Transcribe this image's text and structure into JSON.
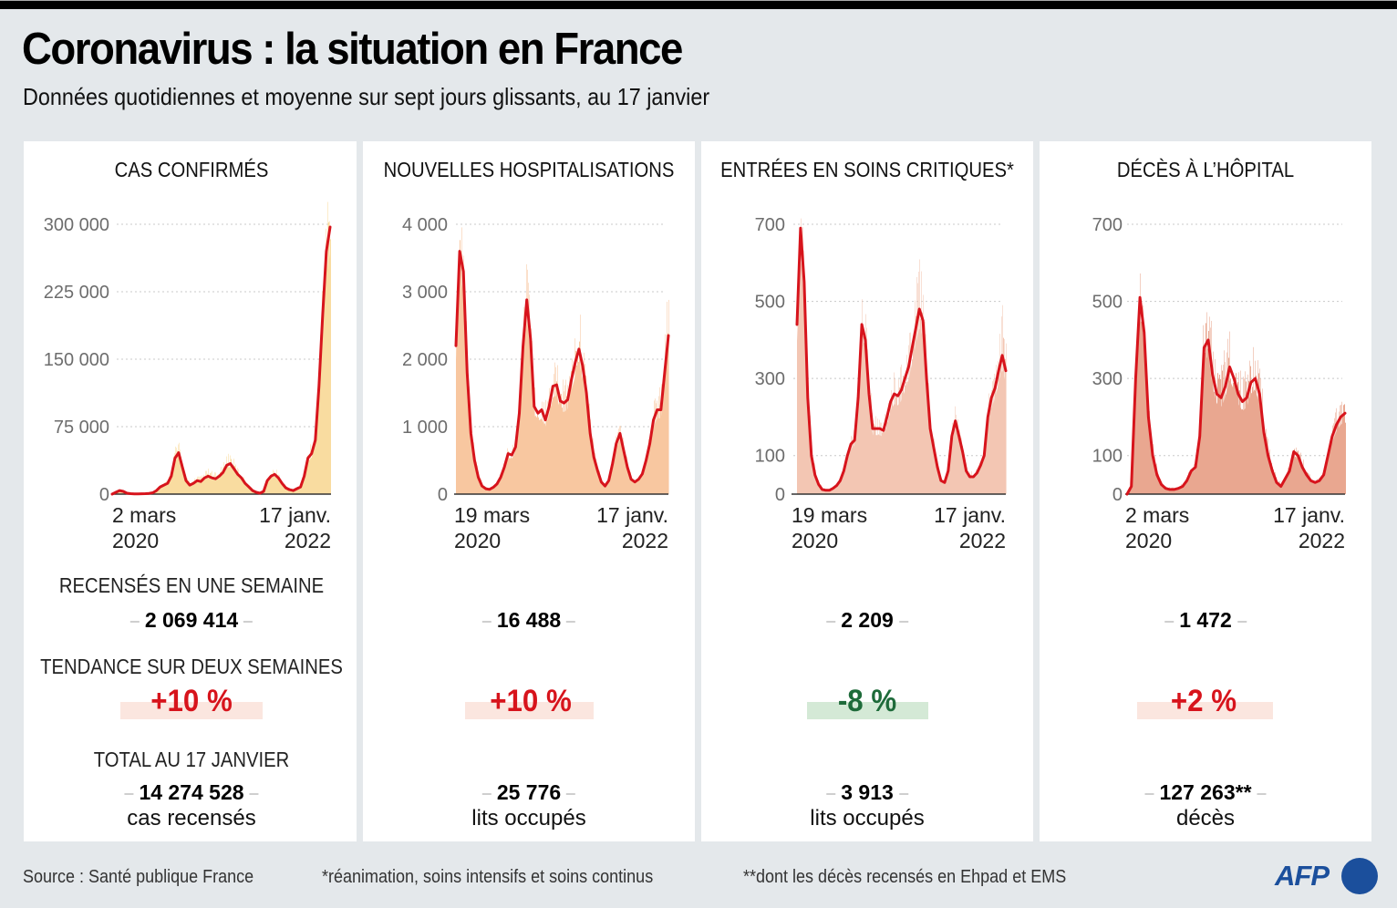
{
  "header": {
    "title": "Coronavirus : la situation en France",
    "subtitle": "Données quotidiennes et moyenne sur sept jours glissants, au 17 janvier"
  },
  "colors": {
    "line": "#d7141c",
    "trend_up_text": "#d7141c",
    "trend_up_bg": "#fbe6df",
    "trend_down_text": "#1e6b3a",
    "trend_down_bg": "#d4e9d6",
    "brand": "#1b4f9c"
  },
  "stat_labels": {
    "weekly": "RECENSÉS EN UNE SEMAINE",
    "trend": "TENDANCE SUR DEUX SEMAINES",
    "total": "TOTAL AU 17 JANVIER"
  },
  "panels": [
    {
      "title": "CAS CONFIRMÉS",
      "weekly": "2 069 414",
      "trend": "+10 %",
      "trend_direction": "up",
      "total": "14 274 528",
      "total_unit": "cas recensés",
      "x_start": [
        "2 mars",
        "2020"
      ],
      "x_end": [
        "17 janv.",
        "2022"
      ]
    },
    {
      "title": "NOUVELLES HOSPITALISATIONS",
      "weekly": "16 488",
      "trend": "+10 %",
      "trend_direction": "up",
      "total": "25 776",
      "total_unit": "lits occupés",
      "x_start": [
        "19 mars",
        "2020"
      ],
      "x_end": [
        "17 janv.",
        "2022"
      ]
    },
    {
      "title": "ENTRÉES EN SOINS CRITIQUES*",
      "weekly": "2 209",
      "trend": "-8 %",
      "trend_direction": "down",
      "total": "3 913",
      "total_unit": "lits occupés",
      "x_start": [
        "19 mars",
        "2020"
      ],
      "x_end": [
        "17 janv.",
        "2022"
      ]
    },
    {
      "title": "DÉCÈS À L’HÔPITAL",
      "weekly": "1 472",
      "trend": "+2 %",
      "trend_direction": "up",
      "total": "127 263**",
      "total_unit": "décès",
      "x_start": [
        "2 mars",
        "2020"
      ],
      "x_end": [
        "17 janv.",
        "2022"
      ]
    }
  ],
  "footer": {
    "source": "Source : Santé publique France",
    "note1": "*réanimation, soins intensifs et soins continus",
    "note2": "**dont les décès recensés en Ehpad et EMS",
    "logo": "AFP"
  },
  "chart_data": [
    {
      "type": "area",
      "title": "CAS CONFIRMÉS",
      "xlabel": "",
      "ylabel": "",
      "x_range": [
        "2020-03-02",
        "2022-01-17"
      ],
      "ylim": [
        0,
        300000
      ],
      "yticks": [
        0,
        75000,
        150000,
        225000,
        300000
      ],
      "ytick_labels": [
        "0",
        "75 000",
        "150 000",
        "225 000",
        "300 000"
      ],
      "xtick_labels": [
        "2 mars 2020",
        "17 janv. 2022"
      ],
      "grid": true,
      "series": [
        {
          "name": "moyenne sur sept jours",
          "style": "line",
          "values": [
            0,
            2000,
            4000,
            3000,
            1000,
            500,
            300,
            300,
            400,
            500,
            800,
            1500,
            4000,
            8000,
            10000,
            12000,
            20000,
            40000,
            46000,
            30000,
            15000,
            10000,
            12000,
            15000,
            14000,
            18000,
            20000,
            18000,
            17000,
            20000,
            24000,
            32000,
            34000,
            28000,
            22000,
            18000,
            12000,
            8000,
            4000,
            2000,
            1000,
            3000,
            15000,
            20000,
            22000,
            18000,
            12000,
            7000,
            5000,
            4000,
            6000,
            8000,
            20000,
            40000,
            45000,
            60000,
            120000,
            200000,
            270000,
            297000
          ]
        },
        {
          "name": "données quotidiennes",
          "style": "bars",
          "values": [
            0,
            3000,
            6000,
            4000,
            1500,
            800,
            500,
            500,
            600,
            700,
            1200,
            2500,
            6000,
            12000,
            14000,
            18000,
            30000,
            62000,
            58000,
            38000,
            20000,
            14000,
            18000,
            22000,
            20000,
            26000,
            30000,
            26000,
            24000,
            28000,
            34000,
            50000,
            48000,
            38000,
            30000,
            24000,
            16000,
            10000,
            6000,
            3000,
            2000,
            5000,
            22000,
            28000,
            30000,
            24000,
            16000,
            9000,
            7000,
            6000,
            9000,
            12000,
            30000,
            55000,
            60000,
            80000,
            160000,
            260000,
            360000,
            330000
          ]
        }
      ]
    },
    {
      "type": "area",
      "title": "NOUVELLES HOSPITALISATIONS",
      "x_range": [
        "2020-03-19",
        "2022-01-17"
      ],
      "ylim": [
        0,
        4000
      ],
      "yticks": [
        0,
        1000,
        2000,
        3000,
        4000
      ],
      "ytick_labels": [
        "0",
        "1 000",
        "2 000",
        "3 000",
        "4 000"
      ],
      "xtick_labels": [
        "19 mars 2020",
        "17 janv. 2022"
      ],
      "grid": true,
      "series": [
        {
          "name": "moyenne sur sept jours",
          "style": "line",
          "values": [
            2200,
            3600,
            3300,
            1800,
            900,
            500,
            250,
            120,
            80,
            70,
            100,
            150,
            250,
            400,
            600,
            580,
            700,
            1200,
            2200,
            2880,
            2300,
            1300,
            1200,
            1250,
            1100,
            1300,
            1600,
            1620,
            1380,
            1350,
            1400,
            1700,
            1950,
            2150,
            1900,
            1500,
            900,
            550,
            350,
            180,
            120,
            200,
            450,
            750,
            900,
            650,
            400,
            220,
            180,
            220,
            300,
            500,
            750,
            1100,
            1250,
            1250,
            1800,
            2350
          ]
        },
        {
          "name": "données quotidiennes",
          "style": "bars",
          "values": [
            2400,
            4300,
            3800,
            2100,
            1100,
            650,
            350,
            180,
            120,
            100,
            140,
            200,
            330,
            520,
            780,
            750,
            900,
            1500,
            2700,
            3700,
            2800,
            1600,
            1500,
            1550,
            1400,
            1650,
            2000,
            2100,
            1750,
            1700,
            1800,
            2200,
            2500,
            3100,
            2400,
            1900,
            1150,
            700,
            450,
            240,
            160,
            260,
            580,
            950,
            1050,
            800,
            500,
            280,
            230,
            280,
            380,
            640,
            950,
            1400,
            1600,
            1600,
            2900,
            3100
          ]
        }
      ]
    },
    {
      "type": "area",
      "title": "ENTRÉES EN SOINS CRITIQUES*",
      "x_range": [
        "2020-03-19",
        "2022-01-17"
      ],
      "ylim": [
        0,
        700
      ],
      "yticks": [
        0,
        100,
        300,
        500,
        700
      ],
      "ytick_labels": [
        "0",
        "100",
        "300",
        "500",
        "700"
      ],
      "xtick_labels": [
        "19 mars 2020",
        "17 janv. 2022"
      ],
      "grid": true,
      "series": [
        {
          "name": "moyenne sur sept jours",
          "style": "line",
          "values": [
            440,
            690,
            550,
            250,
            100,
            50,
            25,
            12,
            10,
            10,
            15,
            22,
            35,
            60,
            100,
            130,
            140,
            250,
            440,
            400,
            260,
            170,
            170,
            170,
            165,
            200,
            240,
            260,
            255,
            270,
            300,
            330,
            380,
            430,
            480,
            450,
            300,
            170,
            120,
            70,
            35,
            30,
            60,
            150,
            190,
            150,
            110,
            60,
            45,
            45,
            55,
            75,
            100,
            200,
            250,
            275,
            320,
            360,
            320
          ]
        },
        {
          "name": "données quotidiennes",
          "style": "bars",
          "values": [
            500,
            780,
            650,
            300,
            130,
            70,
            35,
            18,
            14,
            14,
            20,
            30,
            45,
            80,
            130,
            160,
            180,
            310,
            520,
            480,
            320,
            210,
            210,
            210,
            200,
            240,
            300,
            320,
            320,
            340,
            380,
            420,
            480,
            560,
            660,
            580,
            380,
            210,
            150,
            90,
            45,
            40,
            80,
            190,
            240,
            190,
            140,
            80,
            60,
            60,
            70,
            95,
            130,
            250,
            310,
            340,
            410,
            500,
            420
          ]
        }
      ]
    },
    {
      "type": "area",
      "title": "DÉCÈS À L’HÔPITAL",
      "x_range": [
        "2020-03-02",
        "2022-01-17"
      ],
      "ylim": [
        0,
        700
      ],
      "yticks": [
        0,
        100,
        300,
        500,
        700
      ],
      "ytick_labels": [
        "0",
        "100",
        "300",
        "500",
        "700"
      ],
      "xtick_labels": [
        "2 mars 2020",
        "17 janv. 2022"
      ],
      "grid": true,
      "series": [
        {
          "name": "moyenne sur sept jours",
          "style": "line",
          "values": [
            0,
            20,
            300,
            510,
            420,
            200,
            100,
            50,
            25,
            15,
            12,
            12,
            15,
            20,
            35,
            60,
            70,
            150,
            380,
            400,
            310,
            260,
            250,
            280,
            330,
            300,
            260,
            240,
            250,
            290,
            300,
            260,
            160,
            100,
            60,
            30,
            20,
            40,
            60,
            110,
            100,
            70,
            50,
            35,
            30,
            35,
            50,
            100,
            150,
            180,
            200,
            210
          ]
        },
        {
          "name": "données quotidiennes",
          "style": "bars",
          "values": [
            0,
            30,
            360,
            600,
            500,
            250,
            130,
            70,
            35,
            22,
            18,
            18,
            22,
            30,
            50,
            80,
            100,
            200,
            550,
            500,
            420,
            380,
            390,
            400,
            460,
            410,
            360,
            340,
            350,
            440,
            400,
            370,
            220,
            140,
            80,
            45,
            30,
            55,
            80,
            150,
            130,
            95,
            70,
            50,
            45,
            50,
            70,
            130,
            200,
            230,
            260,
            290
          ]
        }
      ]
    }
  ]
}
